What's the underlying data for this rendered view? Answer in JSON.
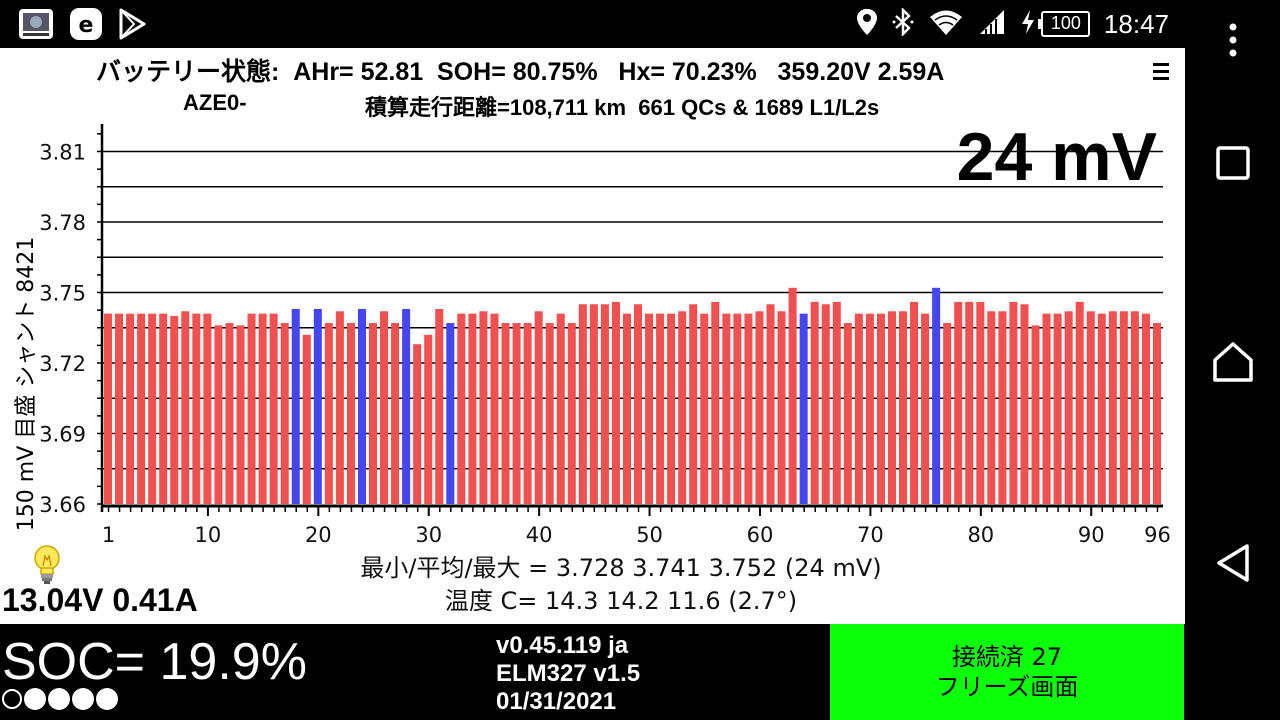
{
  "status_bar": {
    "time": "18:47",
    "battery": "100",
    "icons": [
      "gallery-app-icon",
      "e-app-icon",
      "play-store-icon",
      "location-icon",
      "bluetooth-icon",
      "wifi-icon",
      "cell-signal-icon",
      "charging-icon",
      "battery-icon"
    ]
  },
  "header": {
    "line1": "バッテリー状態:  AHr= 52.81  SOH= 80.75%   Hx= 70.23%   359.20V 2.59A",
    "line2_left": "AZE0-",
    "line2_right": "積算走行距離=108,711 km  661 QCs & 1689 L1/L2s",
    "menu_icon": "menu-icon"
  },
  "chart_data": {
    "type": "bar",
    "title": "24 mV",
    "ylabel": "150 mV 目盛  シャント 8421",
    "ylim": [
      3.66,
      3.82
    ],
    "yticks": [
      3.66,
      3.69,
      3.72,
      3.75,
      3.78,
      3.81
    ],
    "xticks": [
      1,
      10,
      20,
      30,
      40,
      50,
      60,
      70,
      80,
      90,
      96
    ],
    "grid": true,
    "colors": {
      "normal": "#f05050",
      "shunted": "#4646f0"
    },
    "series": [
      {
        "values": [
          3.741,
          3.741,
          3.741,
          3.741,
          3.741,
          3.741,
          3.74,
          3.742,
          3.741,
          3.741,
          3.736,
          3.737,
          3.736,
          3.741,
          3.741,
          3.741,
          3.737,
          3.743,
          3.732,
          3.743,
          3.737,
          3.742,
          3.737,
          3.743,
          3.737,
          3.742,
          3.737,
          3.743,
          3.728,
          3.732,
          3.743,
          3.737,
          3.741,
          3.741,
          3.742,
          3.741,
          3.737,
          3.737,
          3.737,
          3.742,
          3.737,
          3.741,
          3.737,
          3.745,
          3.745,
          3.745,
          3.746,
          3.741,
          3.745,
          3.741,
          3.741,
          3.741,
          3.742,
          3.745,
          3.741,
          3.746,
          3.741,
          3.741,
          3.741,
          3.742,
          3.745,
          3.742,
          3.752,
          3.741,
          3.746,
          3.745,
          3.746,
          3.737,
          3.741,
          3.741,
          3.741,
          3.742,
          3.742,
          3.746,
          3.741,
          3.752,
          3.737,
          3.746,
          3.746,
          3.746,
          3.742,
          3.742,
          3.746,
          3.745,
          3.736,
          3.741,
          3.741,
          3.742,
          3.746,
          3.742,
          3.741,
          3.742,
          3.742,
          3.742,
          3.741,
          3.737
        ],
        "shunted": [
          18,
          20,
          24,
          28,
          32,
          64,
          76
        ]
      }
    ]
  },
  "stats": {
    "minmax": "最小/平均/最大 = 3.728 3.741 3.752  (24 mV)",
    "temp": "温度 C= 14.3  14.2  11.6  (2.7°)"
  },
  "aux_battery": "13.04V 0.41A",
  "soc": "SOC= 19.9%",
  "soc_dots": [
    false,
    true,
    true,
    true,
    true
  ],
  "version": [
    "v0.45.119 ja",
    "ELM327 v1.5",
    "01/31/2021"
  ],
  "connection": {
    "line1": "接続済 27",
    "line2": "フリーズ画面",
    "color": "#0bff0b"
  }
}
